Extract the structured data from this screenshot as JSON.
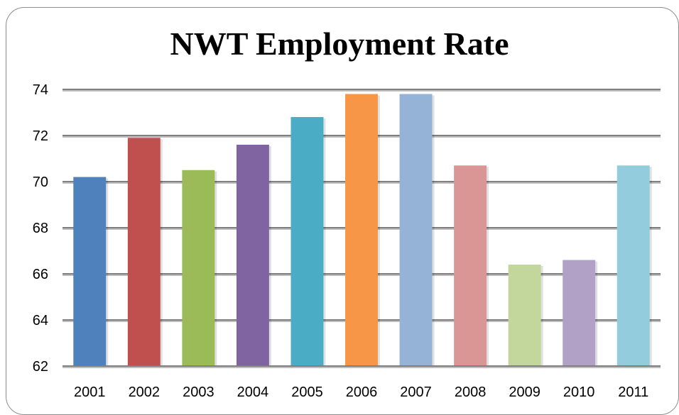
{
  "chart_data": {
    "type": "bar",
    "title": "NWT Employment Rate",
    "xlabel": "",
    "ylabel": "",
    "categories": [
      "2001",
      "2002",
      "2003",
      "2004",
      "2005",
      "2006",
      "2007",
      "2008",
      "2009",
      "2010",
      "2011"
    ],
    "values": [
      70.2,
      71.9,
      70.5,
      71.6,
      72.8,
      73.8,
      73.8,
      70.7,
      66.4,
      66.6,
      70.7
    ],
    "colors": [
      "#4f81bd",
      "#c0504d",
      "#9bbb59",
      "#8064a2",
      "#4bacc6",
      "#f79646",
      "#95b3d7",
      "#d99694",
      "#c3d69b",
      "#b2a1c7",
      "#93cddd"
    ],
    "ylim": [
      62,
      74
    ],
    "yticks": [
      62,
      64,
      66,
      68,
      70,
      72,
      74
    ],
    "grid": true,
    "legend": "none"
  }
}
